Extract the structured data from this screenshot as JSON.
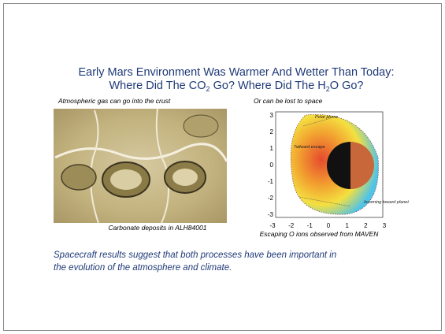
{
  "title": {
    "line1": "Early Mars Environment Was Warmer And Wetter Than Today:",
    "line2": [
      "Where Did The CO",
      "2",
      " Go?  Where Did The H",
      "2",
      "O Go?"
    ]
  },
  "left_panel": {
    "heading": "Atmospheric gas can go into the crust",
    "caption": "Carbonate deposits in ALH84001"
  },
  "right_panel": {
    "heading": "Or can be lost to space",
    "caption": "Escaping O ions observed from MAVEN",
    "yticks": [
      3,
      2,
      1,
      0,
      -1,
      -2,
      -3
    ],
    "xticks": [
      -3,
      -2,
      -1,
      0,
      1,
      2,
      3
    ],
    "annotations": [
      "Polar plume",
      "Tailward escape",
      "Incoming toward planet"
    ]
  },
  "body": [
    "Spacecraft results suggest that both processes have been important in",
    "the evolution of the atmosphere and climate."
  ]
}
